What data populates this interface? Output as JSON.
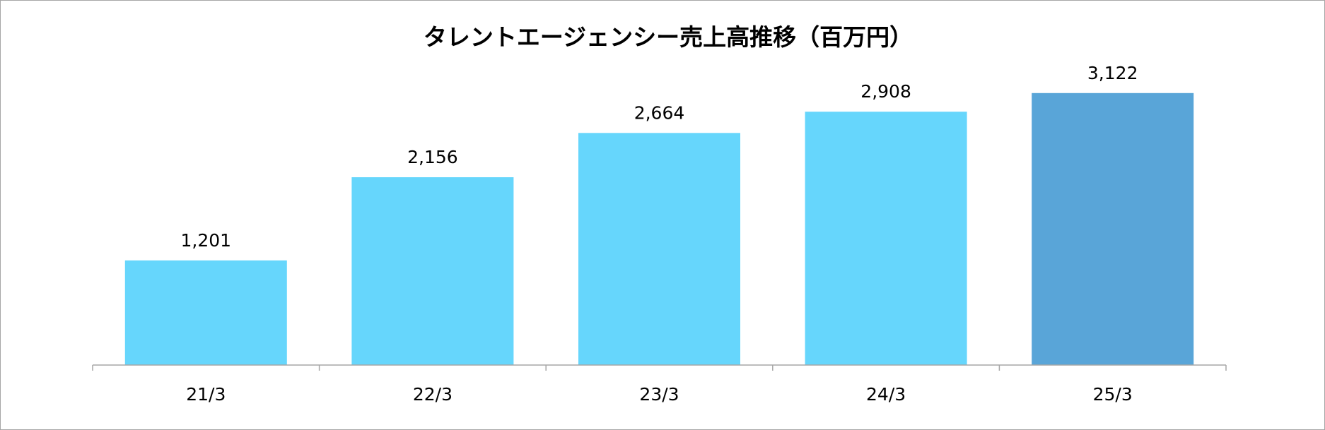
{
  "chart_data": {
    "type": "bar",
    "title": "タレントエージェンシー売上高推移（百万円）",
    "categories": [
      "21/3",
      "22/3",
      "23/3",
      "24/3",
      "25/3"
    ],
    "values": [
      1201,
      2156,
      2664,
      2908,
      3122
    ],
    "data_labels": [
      "1,201",
      "2,156",
      "2,664",
      "2,908",
      "3,122"
    ],
    "xlabel": "",
    "ylabel": "",
    "ylim": [
      0,
      3250
    ],
    "grid": false,
    "legend": "none",
    "colors": {
      "bar": "#66d6fc",
      "highlight_bar": "#59a5d8",
      "axis": "#a6a6a6",
      "frame": "#a6a6a6"
    },
    "highlight_index": 4
  }
}
